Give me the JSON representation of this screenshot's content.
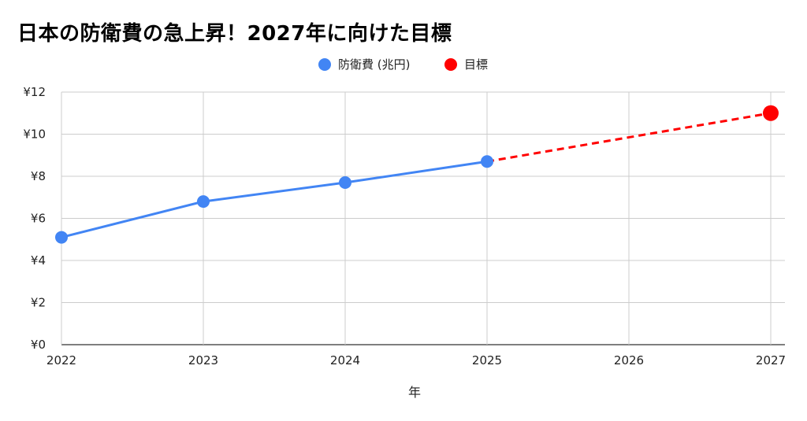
{
  "chart_data": {
    "type": "line",
    "title": "日本の防衛費の急上昇！2027年に向けた目標",
    "xlabel": "年",
    "ylabel": "",
    "x": [
      2022,
      2023,
      2024,
      2025,
      2026,
      2027
    ],
    "xlim": [
      2022,
      2027
    ],
    "ylim": [
      0,
      12
    ],
    "yticks": [
      0,
      2,
      4,
      6,
      8,
      10,
      12
    ],
    "ytick_labels": [
      "¥0",
      "¥2",
      "¥4",
      "¥6",
      "¥8",
      "¥10",
      "¥12"
    ],
    "grid": true,
    "legend_position": "top-center",
    "series": [
      {
        "name": "防衛費 (兆円)",
        "color": "#4285f4",
        "style": "solid",
        "points": [
          {
            "x": 2022,
            "y": 5.1
          },
          {
            "x": 2023,
            "y": 6.8
          },
          {
            "x": 2024,
            "y": 7.7
          },
          {
            "x": 2025,
            "y": 8.7
          }
        ]
      },
      {
        "name": "目標",
        "color": "#ff0000",
        "style": "dashed",
        "points": [
          {
            "x": 2025,
            "y": 8.7,
            "marker": false
          },
          {
            "x": 2027,
            "y": 11.0,
            "marker": true
          }
        ]
      }
    ]
  }
}
